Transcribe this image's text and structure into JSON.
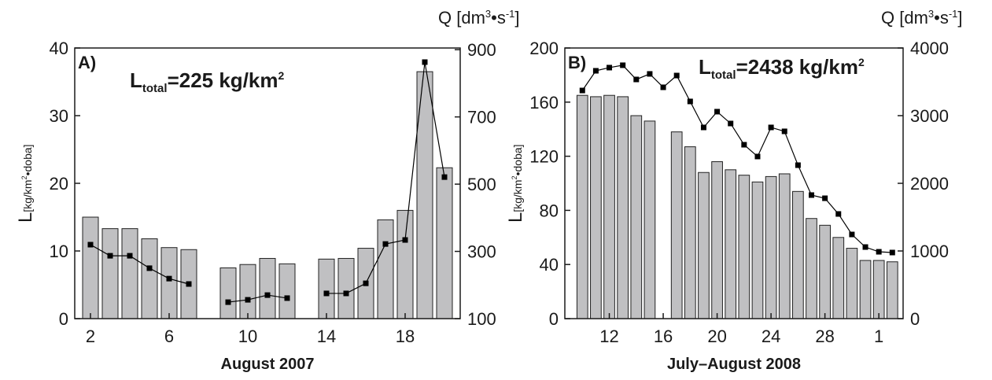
{
  "chart_data": [
    {
      "type": "bar",
      "panel_label": "A)",
      "annotation": {
        "main": "L",
        "sub": "total",
        "rest": "=225 kg/km",
        "sup": "2"
      },
      "xlabel": "August 2007",
      "ylabel": {
        "main": "L",
        "unit": "[kg/km",
        "sup": "2",
        "rest": "•doba]"
      },
      "y2label": {
        "main": "Q [dm",
        "sup1": "3",
        "mid": "•s",
        "sup2": "-1",
        "end": "]"
      },
      "x": [
        2,
        3,
        4,
        5,
        6,
        7,
        8,
        9,
        10,
        11,
        12,
        13,
        14,
        15,
        16,
        17,
        18,
        19,
        20
      ],
      "xlim": [
        1.2,
        20.8
      ],
      "xticks": [
        2,
        6,
        10,
        14,
        18
      ],
      "ylim": [
        0,
        40
      ],
      "yticks": [
        0,
        10,
        20,
        30,
        40
      ],
      "y2lim": [
        100,
        905
      ],
      "y2ticks": [
        100,
        300,
        500,
        700,
        900
      ],
      "series": [
        {
          "type": "bar",
          "color": "#c0c0c2",
          "values": [
            15,
            13.3,
            13.3,
            11.8,
            10.5,
            10.2,
            null,
            7.5,
            8,
            8.9,
            8.1,
            null,
            8.8,
            8.9,
            10.4,
            14.6,
            16,
            36.5,
            22.3
          ]
        },
        {
          "type": "line",
          "axis": "y2",
          "color": "#000000",
          "values": [
            320,
            287,
            287,
            250,
            219,
            203,
            null,
            149,
            156,
            170,
            161,
            null,
            175,
            175,
            205,
            322,
            334,
            863,
            521
          ]
        }
      ]
    },
    {
      "type": "bar",
      "panel_label": "B)",
      "annotation": {
        "main": "L",
        "sub": "total",
        "rest": "=2438 kg/km",
        "sup": "2"
      },
      "xlabel": "July–August 2008",
      "ylabel": {
        "main": "L",
        "unit": "[kg/km",
        "sup": "2",
        "rest": "•doba]"
      },
      "y2label": {
        "main": "Q [dm",
        "sup1": "3",
        "mid": "•s",
        "sup2": "-1",
        "end": "]"
      },
      "x": [
        10,
        11,
        12,
        13,
        14,
        15,
        16,
        17,
        18,
        19,
        20,
        21,
        22,
        23,
        24,
        25,
        26,
        27,
        28,
        29,
        30,
        31,
        32,
        33
      ],
      "xlim": [
        8.7,
        33.8
      ],
      "xticks": [
        12,
        16,
        20,
        24,
        28,
        {
          "value": 32,
          "label": "1"
        }
      ],
      "ylim": [
        0,
        200
      ],
      "yticks": [
        0,
        40,
        80,
        120,
        160,
        200
      ],
      "y2lim": [
        0,
        4000
      ],
      "y2ticks": [
        0,
        1000,
        2000,
        3000,
        4000
      ],
      "series": [
        {
          "type": "bar",
          "color": "#c0c0c2",
          "values": [
            165,
            164,
            165,
            164,
            150,
            146,
            null,
            138,
            127,
            108,
            116,
            110,
            106,
            101,
            105,
            107,
            94,
            74,
            69,
            60,
            52,
            43,
            43,
            42
          ]
        },
        {
          "type": "line",
          "axis": "y2",
          "color": "#000000",
          "values": [
            3372,
            3663,
            3710,
            3745,
            3535,
            3617,
            3419,
            3593,
            3210,
            2826,
            3059,
            2884,
            2570,
            2396,
            2826,
            2768,
            2268,
            1826,
            1779,
            1547,
            1244,
            1058,
            988,
            977
          ]
        }
      ]
    }
  ]
}
